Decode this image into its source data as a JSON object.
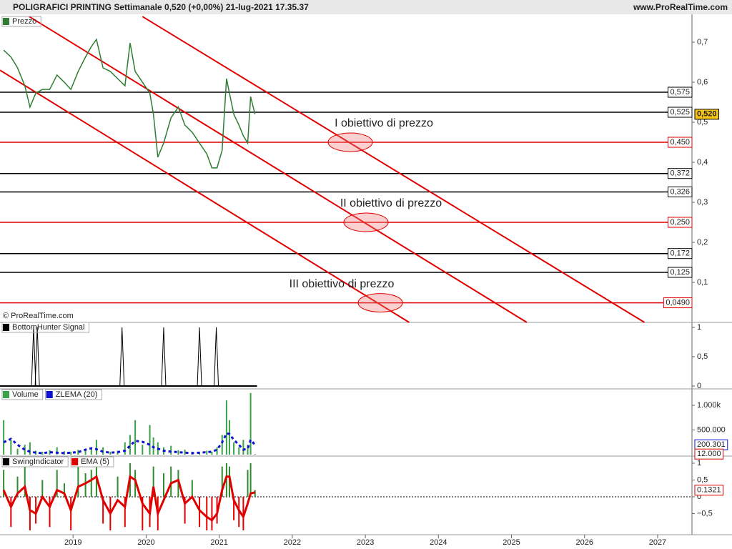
{
  "header": {
    "title": "POLIGRAFICI PRINTING Settimanale 0,520 (+0,00%) 21-lug-2021 17.35.37",
    "site": "www.ProRealTime.com",
    "copyright": "© ProRealTime.com"
  },
  "chart_data": [
    {
      "type": "line",
      "series": [
        {
          "name": "Prezzo",
          "color": "#2e7d32",
          "x": [
            2018.05,
            2018.15,
            2018.24,
            2018.34,
            2018.41,
            2018.49,
            2018.58,
            2018.68,
            2018.78,
            2018.88,
            2018.97,
            2019.07,
            2019.17,
            2019.25,
            2019.32,
            2019.41,
            2019.51,
            2019.61,
            2019.71,
            2019.78,
            2019.85,
            2019.95,
            2020.05,
            2020.1,
            2020.16,
            2020.24,
            2020.34,
            2020.44,
            2020.53,
            2020.63,
            2020.73,
            2020.83,
            2020.9,
            2020.97,
            2021.04,
            2021.1,
            2021.14,
            2021.2,
            2021.27,
            2021.33,
            2021.39,
            2021.43,
            2021.49
          ],
          "values": [
            0.68,
            0.663,
            0.636,
            0.591,
            0.538,
            0.573,
            0.582,
            0.582,
            0.618,
            0.6,
            0.582,
            0.627,
            0.663,
            0.689,
            0.707,
            0.636,
            0.627,
            0.609,
            0.591,
            0.698,
            0.627,
            0.6,
            0.573,
            0.52,
            0.413,
            0.448,
            0.511,
            0.538,
            0.493,
            0.475,
            0.448,
            0.421,
            0.386,
            0.386,
            0.43,
            0.609,
            0.573,
            0.52,
            0.493,
            0.466,
            0.448,
            0.564,
            0.52
          ]
        }
      ],
      "xlim": [
        2018.0,
        2027.47
      ],
      "xticks": [
        2019,
        2020,
        2021,
        2022,
        2023,
        2024,
        2025,
        2026,
        2027
      ],
      "ylim": [
        0,
        0.764
      ],
      "yticks": [
        {
          "value": 0.7,
          "label": "0,7"
        },
        {
          "value": 0.6,
          "label": "0,6"
        },
        {
          "value": 0.5,
          "label": "0,5"
        },
        {
          "value": 0.4,
          "label": "0,4"
        },
        {
          "value": 0.3,
          "label": "0,3"
        },
        {
          "value": 0.2,
          "label": "0,2"
        },
        {
          "value": 0.1,
          "label": "0,1"
        }
      ],
      "last_price": {
        "value": 0.52,
        "label": "0,520"
      },
      "levels": [
        {
          "value": 0.575,
          "label": "0,575",
          "color": "#000000"
        },
        {
          "value": 0.525,
          "label": "0,525",
          "color": "#000000"
        },
        {
          "value": 0.45,
          "label": "0,450",
          "color": "#e00000"
        },
        {
          "value": 0.372,
          "label": "0,372",
          "color": "#000000"
        },
        {
          "value": 0.326,
          "label": "0,326",
          "color": "#000000"
        },
        {
          "value": 0.25,
          "label": "0,250",
          "color": "#e00000"
        },
        {
          "value": 0.172,
          "label": "0,172",
          "color": "#000000"
        },
        {
          "value": 0.125,
          "label": "0,125",
          "color": "#000000"
        },
        {
          "value": 0.049,
          "label": "0,0490",
          "color": "#e00000"
        }
      ],
      "trendlines": [
        {
          "x": [
            2019.95,
            2026.82
          ],
          "y": [
            0.764,
            0
          ]
        },
        {
          "x": [
            2018.4,
            2025.21
          ],
          "y": [
            0.764,
            0
          ]
        },
        {
          "x": [
            2018.0,
            2023.6
          ],
          "y": [
            0.63,
            0
          ]
        }
      ],
      "annotations": [
        {
          "text": "I obiettivo di prezzo",
          "level": 2
        },
        {
          "text": "II obiettivo di prezzo",
          "level": 5
        },
        {
          "text": "III obiettivo di prezzo",
          "level": 8
        }
      ]
    },
    {
      "type": "spike",
      "series": [
        {
          "name": "BottomHunter Signal",
          "color": "#000000",
          "x": [
            2018.46,
            2018.51,
            2019.67,
            2020.24,
            2020.73,
            2020.96
          ],
          "values": [
            1,
            1,
            1,
            1,
            1,
            1
          ]
        }
      ],
      "ylim": [
        -0.012,
        1.085
      ],
      "yticks": [
        1,
        {
          "value": 0.5,
          "label": "0,5"
        },
        0
      ]
    },
    {
      "type": "volume",
      "series": [
        {
          "name": "Volume",
          "color": "#3aa34a",
          "x": [
            2018.05,
            2018.15,
            2018.24,
            2018.34,
            2018.41,
            2018.49,
            2018.58,
            2018.68,
            2018.78,
            2018.88,
            2018.97,
            2019.07,
            2019.17,
            2019.25,
            2019.32,
            2019.41,
            2019.51,
            2019.61,
            2019.71,
            2019.78,
            2019.85,
            2019.95,
            2020.05,
            2020.1,
            2020.16,
            2020.24,
            2020.34,
            2020.44,
            2020.53,
            2020.63,
            2020.73,
            2020.83,
            2020.9,
            2020.97,
            2021.04,
            2021.1,
            2021.14,
            2021.2,
            2021.27,
            2021.33,
            2021.39,
            2021.43,
            2021.49
          ],
          "values": [
            700000,
            300000,
            120000,
            200000,
            250000,
            80000,
            60000,
            90000,
            150000,
            70000,
            60000,
            100000,
            80000,
            120000,
            300000,
            150000,
            60000,
            80000,
            250000,
            400000,
            700000,
            200000,
            600000,
            350000,
            250000,
            150000,
            180000,
            90000,
            100000,
            60000,
            50000,
            80000,
            60000,
            150000,
            400000,
            1100000,
            700000,
            250000,
            150000,
            300000,
            200000,
            1250000,
            12000
          ],
          "last": {
            "value": 12000,
            "label": "12.000"
          }
        },
        {
          "name": "ZLEMA (20)",
          "color": "#1010d0",
          "x": [
            2018.05,
            2018.15,
            2018.24,
            2018.34,
            2018.41,
            2018.49,
            2018.58,
            2018.68,
            2018.78,
            2018.88,
            2018.97,
            2019.07,
            2019.17,
            2019.25,
            2019.32,
            2019.41,
            2019.51,
            2019.61,
            2019.71,
            2019.78,
            2019.85,
            2019.95,
            2020.05,
            2020.1,
            2020.16,
            2020.24,
            2020.34,
            2020.44,
            2020.53,
            2020.63,
            2020.73,
            2020.83,
            2020.9,
            2020.97,
            2021.04,
            2021.1,
            2021.14,
            2021.2,
            2021.27,
            2021.33,
            2021.39,
            2021.43,
            2021.49
          ],
          "values": [
            250000,
            320000,
            200000,
            100000,
            60000,
            40000,
            30000,
            50000,
            40000,
            30000,
            40000,
            50000,
            100000,
            130000,
            110000,
            60000,
            40000,
            50000,
            80000,
            180000,
            280000,
            260000,
            200000,
            150000,
            120000,
            80000,
            60000,
            50000,
            40000,
            30000,
            40000,
            50000,
            60000,
            100000,
            250000,
            430000,
            420000,
            300000,
            200000,
            100000,
            120000,
            300000,
            200301
          ],
          "last": {
            "value": 200301,
            "label": "200.301"
          }
        }
      ],
      "ylim": [
        0,
        1290000
      ],
      "yticks": [
        {
          "value": 1000000,
          "label": "1.000k"
        },
        {
          "value": 500000,
          "label": "500.000"
        }
      ]
    },
    {
      "type": "swing",
      "series": [
        {
          "name": "SwingIndicator",
          "color": "#2e8b2e",
          "x": [
            2018.05,
            2018.15,
            2018.24,
            2018.34,
            2018.41,
            2018.49,
            2018.58,
            2018.68,
            2018.78,
            2018.88,
            2018.97,
            2019.07,
            2019.17,
            2019.25,
            2019.32,
            2019.41,
            2019.51,
            2019.61,
            2019.71,
            2019.78,
            2019.85,
            2019.95,
            2020.05,
            2020.1,
            2020.16,
            2020.24,
            2020.34,
            2020.44,
            2020.53,
            2020.63,
            2020.73,
            2020.83,
            2020.9,
            2020.97,
            2021.04,
            2021.1,
            2021.14,
            2021.2,
            2021.27,
            2021.33,
            2021.39,
            2021.43,
            2021.49
          ],
          "values": [
            0.8,
            -0.9,
            0.6,
            0.9,
            -1,
            -0.8,
            0.5,
            -0.9,
            0.8,
            0.4,
            -1,
            0.9,
            0.7,
            0.8,
            0.9,
            -0.8,
            -1,
            0.6,
            -0.9,
            1,
            0.8,
            -1,
            -0.9,
            0.9,
            -1,
            0.7,
            0.9,
            0.8,
            -0.8,
            0.5,
            -0.9,
            -1,
            -1,
            -0.8,
            0.9,
            1,
            0.9,
            -0.7,
            -0.9,
            -1,
            0.8,
            1,
            0.2
          ]
        },
        {
          "name": "EMA (5)",
          "color": "#e00000",
          "x": [
            2018.05,
            2018.15,
            2018.24,
            2018.34,
            2018.41,
            2018.49,
            2018.58,
            2018.68,
            2018.78,
            2018.88,
            2018.97,
            2019.07,
            2019.17,
            2019.25,
            2019.32,
            2019.41,
            2019.51,
            2019.61,
            2019.71,
            2019.78,
            2019.85,
            2019.95,
            2020.05,
            2020.1,
            2020.16,
            2020.24,
            2020.34,
            2020.44,
            2020.53,
            2020.63,
            2020.73,
            2020.83,
            2020.9,
            2020.97,
            2021.04,
            2021.1,
            2021.14,
            2021.2,
            2021.27,
            2021.33,
            2021.39,
            2021.43,
            2021.49
          ],
          "values": [
            0.2,
            -0.3,
            0.1,
            0.3,
            -0.4,
            -0.5,
            0,
            -0.3,
            0.2,
            0.1,
            -0.4,
            0.3,
            0.4,
            0.5,
            0.6,
            -0.1,
            -0.5,
            -0.1,
            -0.3,
            0.6,
            0.5,
            -0.2,
            -0.5,
            0.3,
            -0.5,
            -0.1,
            0.4,
            0.5,
            -0.2,
            0,
            -0.4,
            -0.6,
            -0.7,
            -0.5,
            0.2,
            0.6,
            0.6,
            -0.1,
            -0.4,
            -0.6,
            -0.2,
            0.1,
            0.1321
          ],
          "last": {
            "value": 0.1321,
            "label": "0.1321"
          }
        }
      ],
      "ylim": [
        -1.13,
        1.17
      ],
      "yticks": [
        1,
        {
          "value": 0.5,
          "label": "0,5"
        },
        0,
        {
          "value": -0.5,
          "label": "−0,5"
        }
      ]
    }
  ]
}
